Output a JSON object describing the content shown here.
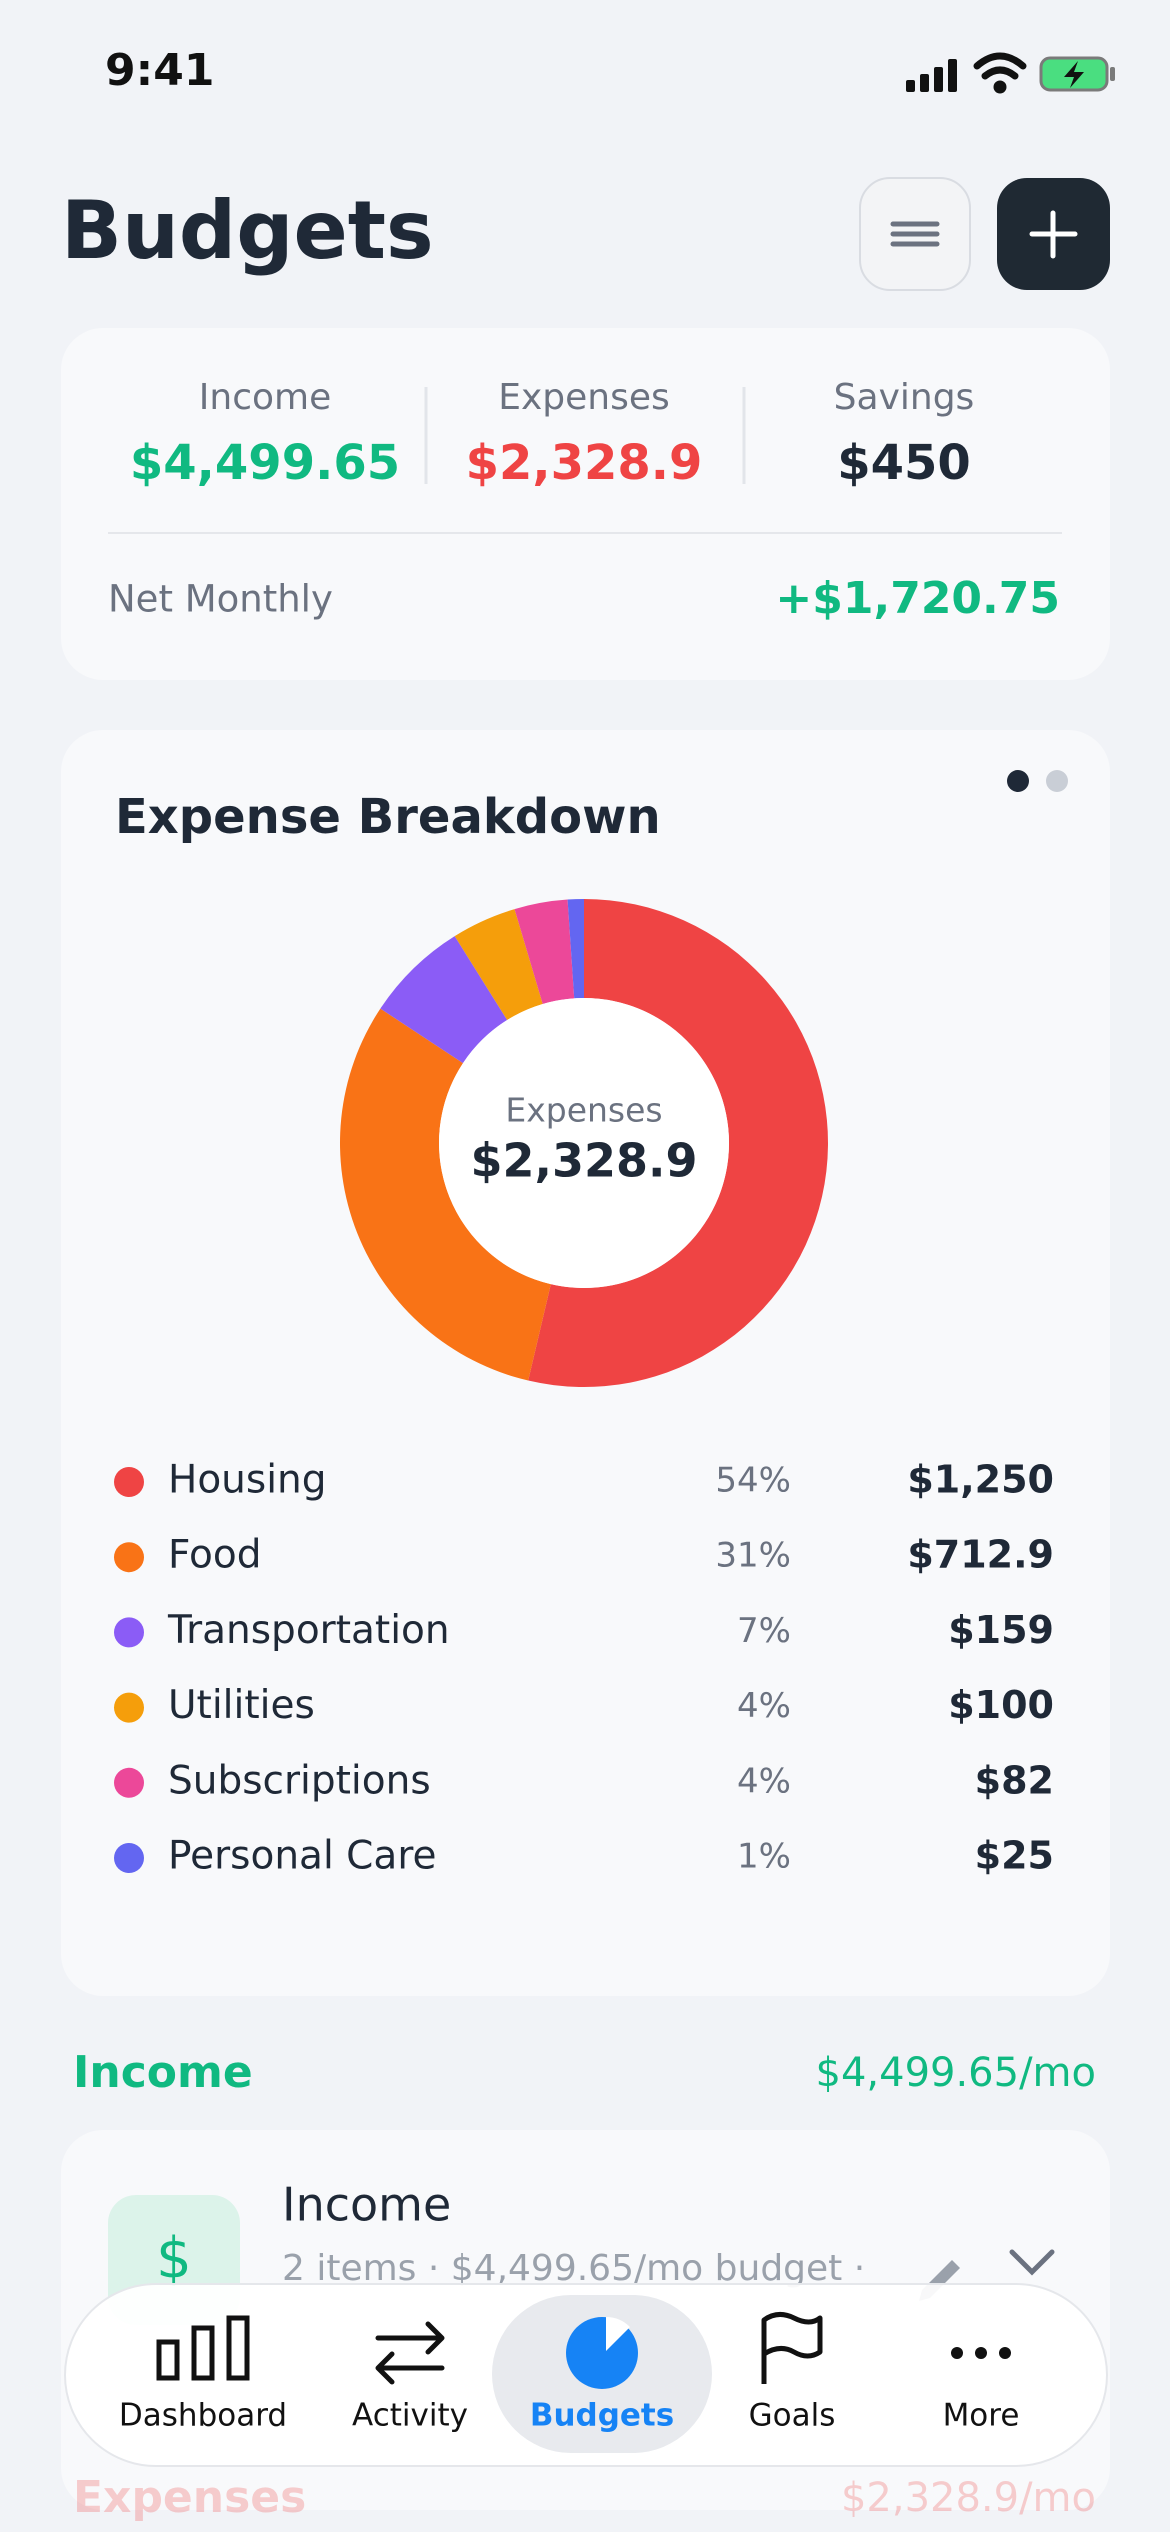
{
  "status_bar": {
    "time": "9:41"
  },
  "header": {
    "title": "Budgets"
  },
  "summary": {
    "items": [
      {
        "label": "Income",
        "value": "$4,499.65"
      },
      {
        "label": "Expenses",
        "value": "$2,328.9"
      },
      {
        "label": "Savings",
        "value": "$450"
      }
    ],
    "net_label": "Net Monthly",
    "net_value": "+$1,720.75"
  },
  "expense_breakdown": {
    "title": "Expense Breakdown",
    "center_label": "Expenses",
    "center_value": "$2,328.9",
    "chart_data": {
      "type": "pie",
      "categories": [
        "Housing",
        "Food",
        "Transportation",
        "Utilities",
        "Subscriptions",
        "Personal Care"
      ],
      "values": [
        1250,
        712.9,
        159,
        100,
        82,
        25
      ],
      "value_labels": [
        "$1,250",
        "$712.9",
        "$159",
        "$100",
        "$82",
        "$25"
      ],
      "percent_labels": [
        "54%",
        "31%",
        "7%",
        "4%",
        "4%",
        "1%"
      ],
      "colors": [
        "#ef4444",
        "#f97316",
        "#8b5cf6",
        "#f59e0b",
        "#ec4899",
        "#6366f1"
      ]
    }
  },
  "income_section": {
    "title": "Income",
    "total": "$4,499.65/mo",
    "card": {
      "icon": "$",
      "title": "Income",
      "subtitle": "2 items · $4,499.65/mo budget ·"
    }
  },
  "expenses_section": {
    "title": "Expenses",
    "total": "$2,328.9/mo"
  },
  "tab_bar": {
    "tabs": [
      "Dashboard",
      "Activity",
      "Budgets",
      "Goals",
      "More"
    ],
    "active": 2
  }
}
